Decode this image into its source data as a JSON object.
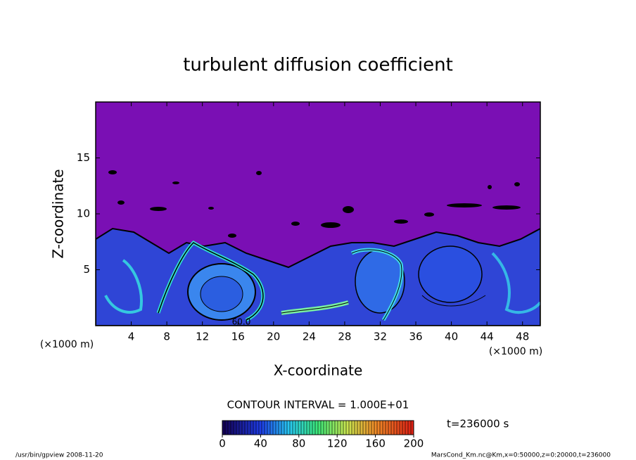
{
  "chart_data": {
    "type": "contour",
    "title": "turbulent diffusion coefficient",
    "x_label": "X-coordinate",
    "y_label": "Z-coordinate",
    "x_unit": "(×1000 m)",
    "y_unit": "(×1000 m)",
    "xlim": [
      0,
      50
    ],
    "xticks": [
      4,
      8,
      12,
      16,
      20,
      24,
      28,
      32,
      36,
      40,
      44,
      48
    ],
    "ylim": [
      0,
      20
    ],
    "yticks": [
      5,
      10,
      15
    ],
    "contour_interval": "CONTOUR INTERVAL = 1.000E+01",
    "contour_label": "60.0",
    "time": "t=236000 s",
    "colorbar": {
      "lim": [
        0,
        200
      ],
      "ticks": [
        0,
        40,
        80,
        120,
        160,
        200
      ]
    }
  },
  "footer": {
    "left": "/usr/bin/gpview  2008-11-20",
    "right": "MarsCond_Km.nc@Km,x=0:50000,z=0:20000,t=236000"
  }
}
